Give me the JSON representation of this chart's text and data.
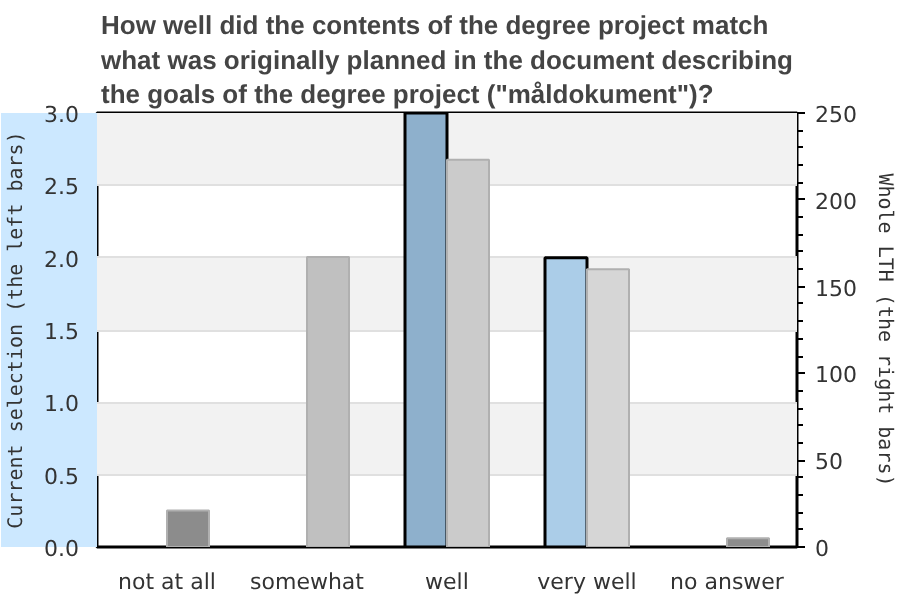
{
  "chart_data": {
    "type": "bar",
    "title": "How well did the contents of the degree project match\nwhat was originally planned in the document describing\nthe goals of the degree project (\"måldokument\")?",
    "categories": [
      "not at all",
      "somewhat",
      "well",
      "very well",
      "no answer"
    ],
    "series": [
      {
        "colors": [
          "#8eb0cc",
          "#8eb0cc",
          "#8eb0cc",
          "#abcde8",
          "#8eb0cc"
        ],
        "values": [
          0,
          0,
          3.0,
          2.0,
          0
        ]
      },
      {
        "axis": "y2",
        "colors": [
          "#8c8c8c",
          "#c0c0c0",
          "#cbcbcb",
          "#d6d6d6",
          "#8c8c8c"
        ],
        "values": [
          21,
          167,
          223,
          160,
          5
        ]
      }
    ],
    "ylabel": "Current selection (the left bars)",
    "y2label": "Whole LTH (the right bars)",
    "ylim": [
      0,
      3.0
    ],
    "yticks": [
      {
        "value": 0,
        "label": "0.0"
      },
      {
        "value": 0.5,
        "label": "0.5"
      },
      {
        "value": 1,
        "label": "1.0"
      },
      {
        "value": 1.5,
        "label": "1.5"
      },
      {
        "value": 2,
        "label": "2.0"
      },
      {
        "value": 2.5,
        "label": "2.5"
      },
      {
        "value": 3,
        "label": "3.0"
      }
    ],
    "y2lim": [
      0,
      250
    ],
    "y2ticks": [
      0,
      50,
      100,
      150,
      200,
      250
    ],
    "grid": "y"
  }
}
